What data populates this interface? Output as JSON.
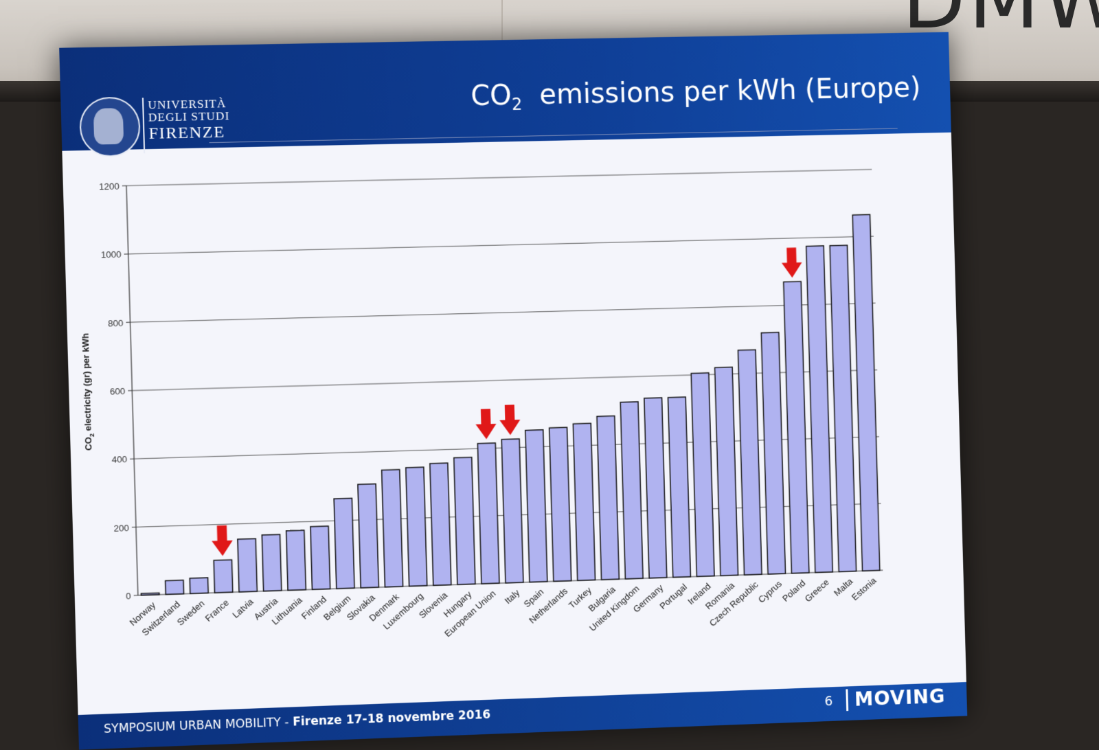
{
  "room": {
    "sign_text": "DMW"
  },
  "slide": {
    "title_prefix": "CO",
    "title_subscript": "2",
    "title_suffix": "emissions per kWh (Europe)",
    "logo": {
      "line1": "UNIVERSITÀ",
      "line2": "DEGLI STUDI",
      "line3": "FIRENZE"
    },
    "footer": {
      "event": "SYMPOSIUM URBAN MOBILITY - ",
      "event_bold": "Firenze 17-18 novembre 2016",
      "page_number": "6",
      "brand": "MOVING"
    },
    "colors": {
      "header_blue": "#0f3f97",
      "bar_fill": "#b0b3f0",
      "bar_stroke": "#111111",
      "arrow_red": "#e01818"
    }
  },
  "chart_data": {
    "type": "bar",
    "title": "",
    "xlabel": "",
    "ylabel_main": "CO",
    "ylabel_sub": "2",
    "ylabel_rest": " electricity (gr) per kWh",
    "ylim": [
      0,
      1200
    ],
    "yticks": [
      0,
      200,
      400,
      600,
      800,
      1000,
      1200
    ],
    "grid": true,
    "categories": [
      "Norway",
      "Switzerland",
      "Sweden",
      "France",
      "Latvia",
      "Austria",
      "Lithuania",
      "Finland",
      "Belgium",
      "Slovakia",
      "Denmark",
      "Luxembourg",
      "Slovenia",
      "Hungary",
      "European Union",
      "Italy",
      "Spain",
      "Netherlands",
      "Turkey",
      "Bulgaria",
      "United Kingdom",
      "Germany",
      "Portugal",
      "Ireland",
      "Romania",
      "Czech Republic",
      "Cyprus",
      "Poland",
      "Greece",
      "Malta",
      "Estonia"
    ],
    "values": [
      5,
      40,
      45,
      95,
      155,
      165,
      175,
      185,
      265,
      305,
      345,
      350,
      360,
      375,
      415,
      425,
      450,
      455,
      465,
      485,
      525,
      535,
      535,
      605,
      620,
      670,
      720,
      870,
      975,
      975,
      1065
    ],
    "highlighted": [
      "France",
      "European Union",
      "Italy",
      "Poland"
    ]
  }
}
